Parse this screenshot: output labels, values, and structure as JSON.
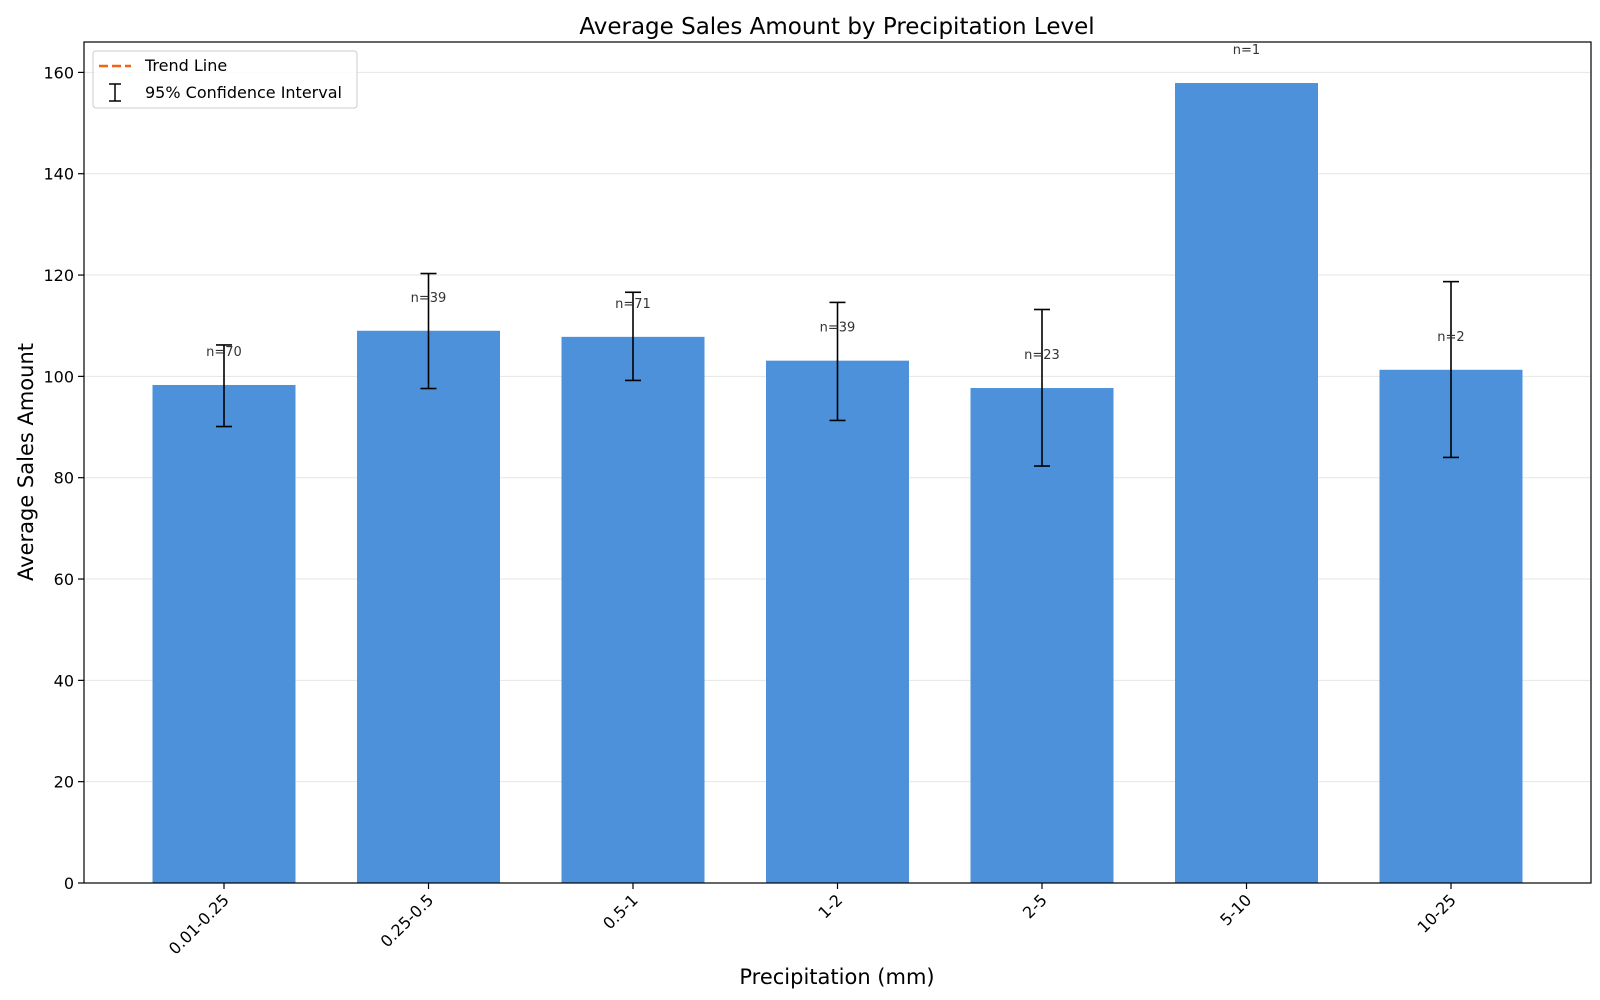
{
  "chart_data": {
    "type": "bar",
    "title": "Average Sales Amount by Precipitation Level",
    "xlabel": "Precipitation (mm)",
    "ylabel": "Average Sales Amount",
    "categories": [
      "0.01-0.25",
      "0.25-0.5",
      "0.5-1",
      "1-2",
      "2-5",
      "5-10",
      "10-25"
    ],
    "values": [
      98.3,
      109.0,
      107.8,
      103.1,
      97.7,
      157.9,
      101.3
    ],
    "ci_lower": [
      90.1,
      97.6,
      99.2,
      91.3,
      82.3,
      null,
      84.0
    ],
    "ci_upper": [
      106.2,
      120.3,
      116.6,
      114.6,
      113.2,
      null,
      118.7
    ],
    "sample_labels": [
      "n=70",
      "n=39",
      "n=71",
      "n=39",
      "n=23",
      "n=1",
      "n=2"
    ],
    "ylim": [
      0,
      166
    ],
    "yticks": [
      0,
      20,
      40,
      60,
      80,
      100,
      120,
      140,
      160
    ],
    "grid": "y",
    "legend": {
      "position": "top-left",
      "entries": [
        {
          "label": "Trend Line",
          "color": "#f06414",
          "style": "dashed-line"
        },
        {
          "label": "95% Confidence Interval",
          "color": "#000000",
          "style": "errorbar"
        }
      ]
    },
    "colors": {
      "bar": "#4c91da",
      "errorbar": "#000000",
      "axis": "#000000",
      "grid": "#e6e6e6",
      "annotation": "#333333"
    }
  }
}
